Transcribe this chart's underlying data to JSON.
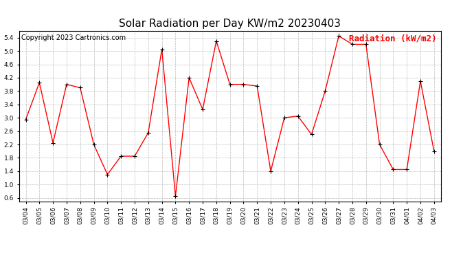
{
  "title": "Solar Radiation per Day KW/m2 20230403",
  "copyright_text": "Copyright 2023 Cartronics.com",
  "legend_label": "Radiation (kW/m2)",
  "dates": [
    "03/04",
    "03/05",
    "03/06",
    "03/07",
    "03/08",
    "03/09",
    "03/10",
    "03/11",
    "03/12",
    "03/13",
    "03/14",
    "03/15",
    "03/16",
    "03/17",
    "03/18",
    "03/19",
    "03/20",
    "03/21",
    "03/22",
    "03/23",
    "03/24",
    "03/25",
    "03/26",
    "03/27",
    "03/28",
    "03/29",
    "03/30",
    "03/31",
    "04/01",
    "04/02",
    "04/03"
  ],
  "values": [
    2.95,
    4.05,
    2.25,
    4.0,
    3.9,
    2.2,
    1.3,
    1.85,
    1.85,
    2.55,
    5.05,
    0.65,
    4.2,
    3.25,
    5.3,
    4.0,
    4.0,
    3.95,
    1.4,
    3.0,
    3.05,
    2.5,
    3.8,
    5.45,
    5.2,
    5.2,
    2.2,
    1.45,
    1.45,
    4.1,
    2.0
  ],
  "line_color": "red",
  "marker": "+",
  "marker_color": "black",
  "ylim": [
    0.5,
    5.6
  ],
  "yticks": [
    0.6,
    1.0,
    1.4,
    1.8,
    2.2,
    2.6,
    3.0,
    3.4,
    3.8,
    4.2,
    4.6,
    5.0,
    5.4
  ],
  "background_color": "#ffffff",
  "grid_color": "#aaaaaa",
  "title_fontsize": 11,
  "copyright_fontsize": 7,
  "legend_fontsize": 9,
  "tick_fontsize": 6.5
}
